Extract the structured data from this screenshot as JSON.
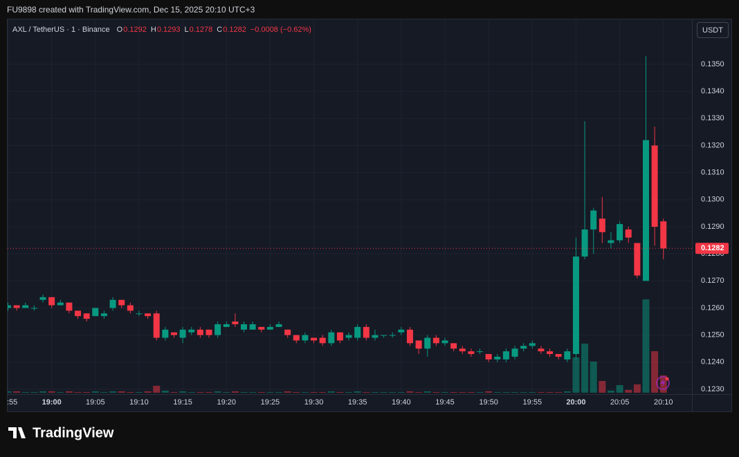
{
  "header": {
    "attribution": "FU9898 created with TradingView.com, Dec 15, 2025 20:10 UTC+3"
  },
  "chart_data": {
    "type": "candlestick",
    "symbol": "AXL / TetherUS · 1 · Binance",
    "legend": [
      {
        "key": "O",
        "value": 0.1292
      },
      {
        "key": "H",
        "value": 0.1293
      },
      {
        "key": "L",
        "value": 0.1278
      },
      {
        "key": "C",
        "value": 0.1282
      }
    ],
    "change": "−0.0008 (−0.62%)",
    "currency": "USDT",
    "categories": [
      "18:55",
      null,
      null,
      null,
      null,
      "19:00",
      null,
      null,
      null,
      null,
      "19:05",
      null,
      null,
      null,
      null,
      "19:10",
      null,
      null,
      null,
      null,
      "19:15",
      null,
      null,
      null,
      null,
      "19:20",
      null,
      null,
      null,
      null,
      "19:25",
      null,
      null,
      null,
      null,
      "19:30",
      null,
      null,
      null,
      null,
      "19:35",
      null,
      null,
      null,
      null,
      "19:40",
      null,
      null,
      null,
      null,
      "19:45",
      null,
      null,
      null,
      null,
      "19:50",
      null,
      null,
      null,
      null,
      "19:55",
      null,
      null,
      null,
      null,
      "20:00",
      null,
      null,
      null,
      null,
      "20:05",
      null,
      null,
      null,
      null,
      "20:10"
    ],
    "open": [
      0.126,
      0.1261,
      0.126,
      0.126,
      0.1263,
      0.1264,
      0.1261,
      0.1262,
      0.1259,
      0.1258,
      0.1257,
      0.1257,
      0.126,
      0.1263,
      0.1261,
      0.1258,
      0.1258,
      0.1258,
      0.1249,
      0.1251,
      0.1249,
      0.1251,
      0.1252,
      0.1252,
      0.125,
      0.1253,
      0.1255,
      0.1252,
      0.1252,
      0.1253,
      0.1252,
      0.1253,
      0.1252,
      0.125,
      0.1248,
      0.1249,
      0.1249,
      0.1247,
      0.1251,
      0.1249,
      0.1249,
      0.1253,
      0.1249,
      0.125,
      0.125,
      0.1251,
      0.1252,
      0.1248,
      0.1245,
      0.1249,
      0.1247,
      0.1247,
      0.1245,
      0.1244,
      0.1244,
      0.1243,
      0.1241,
      0.1241,
      0.1242,
      0.1245,
      0.1246,
      0.1245,
      0.1244,
      0.1243,
      0.1241,
      0.1243,
      0.1279,
      0.1289,
      0.1293,
      0.1284,
      0.1285,
      0.1289,
      0.1284,
      0.127,
      0.132,
      0.1292
    ],
    "high": [
      0.1262,
      0.1261,
      0.1262,
      0.1261,
      0.1265,
      0.1264,
      0.1263,
      0.1262,
      0.1259,
      0.1258,
      0.126,
      0.1259,
      0.1264,
      0.1263,
      0.1262,
      0.1259,
      0.1258,
      0.1259,
      0.1253,
      0.1251,
      0.1253,
      0.1253,
      0.1253,
      0.1252,
      0.1255,
      0.1255,
      0.1258,
      0.1255,
      0.1255,
      0.1253,
      0.1254,
      0.1255,
      0.1252,
      0.125,
      0.1251,
      0.1249,
      0.125,
      0.1252,
      0.1251,
      0.1251,
      0.1254,
      0.1254,
      0.1252,
      0.125,
      0.1251,
      0.1253,
      0.1253,
      0.1248,
      0.125,
      0.125,
      0.1249,
      0.1247,
      0.1246,
      0.1245,
      0.1245,
      0.1243,
      0.1243,
      0.1245,
      0.1246,
      0.1247,
      0.1248,
      0.1246,
      0.1245,
      0.1243,
      0.1245,
      0.1286,
      0.1329,
      0.1297,
      0.1301,
      0.1288,
      0.1292,
      0.129,
      0.1284,
      0.1353,
      0.1327,
      0.1293
    ],
    "low": [
      0.1259,
      0.1259,
      0.126,
      0.1259,
      0.1262,
      0.126,
      0.1261,
      0.1258,
      0.1256,
      0.1255,
      0.1257,
      0.1256,
      0.1259,
      0.126,
      0.1258,
      0.1257,
      0.1256,
      0.1248,
      0.1248,
      0.1249,
      0.1247,
      0.125,
      0.1249,
      0.1249,
      0.1249,
      0.1253,
      0.1253,
      0.1251,
      0.1252,
      0.1251,
      0.1252,
      0.1253,
      0.1249,
      0.1247,
      0.1247,
      0.1247,
      0.1246,
      0.1246,
      0.1247,
      0.1248,
      0.1248,
      0.1248,
      0.1248,
      0.1249,
      0.1249,
      0.125,
      0.1246,
      0.1243,
      0.1242,
      0.1246,
      0.1246,
      0.1244,
      0.1243,
      0.1242,
      0.1243,
      0.124,
      0.124,
      0.124,
      0.1241,
      0.1244,
      0.1245,
      0.1243,
      0.1242,
      0.1241,
      0.124,
      0.1241,
      0.1278,
      0.128,
      0.1284,
      0.1282,
      0.1284,
      0.1284,
      0.1271,
      0.127,
      0.1283,
      0.1278
    ],
    "close": [
      0.1261,
      0.126,
      0.1261,
      0.126,
      0.1264,
      0.1261,
      0.1262,
      0.1259,
      0.1257,
      0.1256,
      0.126,
      0.1258,
      0.1263,
      0.1261,
      0.1259,
      0.1258,
      0.1257,
      0.1249,
      0.1252,
      0.125,
      0.1252,
      0.1252,
      0.125,
      0.125,
      0.1254,
      0.1254,
      0.1254,
      0.1254,
      0.1254,
      0.1252,
      0.1253,
      0.1254,
      0.125,
      0.1248,
      0.125,
      0.1248,
      0.1247,
      0.1251,
      0.1248,
      0.125,
      0.1253,
      0.1249,
      0.125,
      0.125,
      0.125,
      0.1252,
      0.1247,
      0.1245,
      0.1249,
      0.1247,
      0.1248,
      0.1245,
      0.1244,
      0.1243,
      0.1244,
      0.1241,
      0.1242,
      0.1244,
      0.1245,
      0.1246,
      0.1247,
      0.1244,
      0.1243,
      0.1242,
      0.1244,
      0.1279,
      0.1289,
      0.1296,
      0.1288,
      0.1285,
      0.1291,
      0.1286,
      0.1272,
      0.1322,
      0.129,
      0.1282
    ],
    "volume": [
      2,
      2,
      1,
      1,
      2,
      2,
      1,
      2,
      1,
      1,
      2,
      1,
      2,
      2,
      1,
      1,
      2,
      10,
      3,
      1,
      2,
      1,
      1,
      1,
      2,
      1,
      2,
      1,
      1,
      1,
      1,
      1,
      2,
      1,
      1,
      1,
      1,
      2,
      1,
      1,
      2,
      1,
      1,
      1,
      1,
      1,
      2,
      1,
      2,
      1,
      1,
      1,
      1,
      1,
      1,
      2,
      1,
      1,
      1,
      1,
      1,
      1,
      1,
      1,
      2,
      51,
      71,
      45,
      17,
      3,
      11,
      4,
      12,
      135,
      60,
      25
    ],
    "ylim": [
      0.12282,
      0.13666
    ],
    "yticks": [
      {
        "value": 0.123,
        "label": "0.1230"
      },
      {
        "value": 0.124,
        "label": "0.1240"
      },
      {
        "value": 0.125,
        "label": "0.1250"
      },
      {
        "value": 0.126,
        "label": "0.1260"
      },
      {
        "value": 0.127,
        "label": "0.1270"
      },
      {
        "value": 0.128,
        "label": "0.1280"
      },
      {
        "value": 0.129,
        "label": "0.1290"
      },
      {
        "value": 0.13,
        "label": "0.1300"
      },
      {
        "value": 0.131,
        "label": "0.1310"
      },
      {
        "value": 0.132,
        "label": "0.1320"
      },
      {
        "value": 0.133,
        "label": "0.1330"
      },
      {
        "value": 0.134,
        "label": "0.1340"
      },
      {
        "value": 0.135,
        "label": "0.1350"
      }
    ],
    "last_price": 0.1282,
    "colors": {
      "up": "#089981",
      "down": "#f23645"
    },
    "grid": true
  },
  "footer": {
    "brand": "TradingView"
  }
}
